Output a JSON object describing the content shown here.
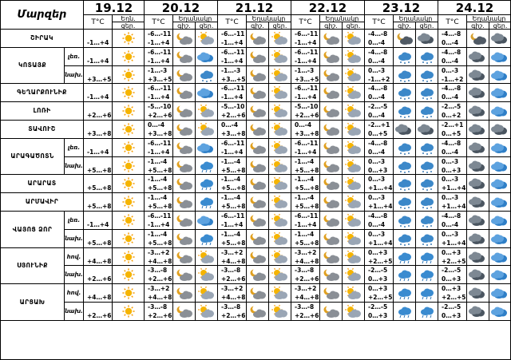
{
  "header": {
    "corner": "Մարզեր",
    "dates": [
      "19.12",
      "20.12",
      "21.12",
      "22.12",
      "23.12",
      "24.12"
    ],
    "tc": "T°C",
    "first_day_weather": "Եղն.",
    "weather": "Եղանակը",
    "night_short": "գիշ.",
    "day_short": "ցեր."
  },
  "row_labels": [
    "գիշ.",
    "ցեր."
  ],
  "rows": [
    {
      "region": "ՇԻՐԱԿ",
      "sub": "",
      "t": [
        [
          "",
          "-1…+4"
        ],
        [
          "-6…-11",
          "-1…+4"
        ],
        [
          "-6…-11",
          "-1…+4"
        ],
        [
          "-6…-11",
          "-1…+4"
        ],
        [
          "-4…-8",
          "0…-4"
        ],
        [
          "-4…-8",
          "0…-4"
        ]
      ],
      "icons": [
        "sun",
        "moon-cloud",
        "cloud-sun",
        "moon-cloud",
        "cloud-sun",
        "moon-cloud",
        "cloud-sun",
        "cloud-moon-dark",
        "cloud-dark",
        "cloud-moon-dark",
        "cloud-dark"
      ]
    },
    {
      "region": "ԿՈՏԱՅՔ",
      "sub": "լեռ.",
      "t": [
        [
          "",
          "-1…+4"
        ],
        [
          "-6…-11",
          "-1…+4"
        ],
        [
          "-6…-11",
          "-1…+4"
        ],
        [
          "-6…-11",
          "-1…+4"
        ],
        [
          "-4…-8",
          "0…-4"
        ],
        [
          "-4…-8",
          "0…-4"
        ]
      ],
      "icons": [
        "sun",
        "moon-cloud",
        "blue-cloud",
        "moon-cloud",
        "cloud-sun",
        "moon-cloud",
        "cloud-sun",
        "snow-cloud",
        "snow-cloud",
        "cloud-dark",
        "blue-cloud"
      ]
    },
    {
      "region": "ԿՈՏԱՅՔ",
      "sub": "նախ.",
      "t": [
        [
          "",
          "+3…+5"
        ],
        [
          "-1…-3",
          "+3…+5"
        ],
        [
          "-1…-3",
          "+3…+5"
        ],
        [
          "-1…-3",
          "+3…+5"
        ],
        [
          "0…-3",
          "-1…+2"
        ],
        [
          "0…-3",
          "-1…+2"
        ]
      ],
      "icons": [
        "sun",
        "moon-cloud",
        "snow-cloud",
        "moon-cloud",
        "cloud-sun",
        "moon-cloud",
        "cloud-sun",
        "snow-cloud",
        "snow-cloud",
        "cloud-dark",
        "blue-cloud"
      ]
    },
    {
      "region": "ԳԵՂԱՐՔՈՒՆԻՔ",
      "sub": "",
      "t": [
        [
          "",
          "-1…+4"
        ],
        [
          "-6…-11",
          "-1…+4"
        ],
        [
          "-6…-11",
          "-1…+4"
        ],
        [
          "-6…-11",
          "-1…+4"
        ],
        [
          "-4…-8",
          "0…-4"
        ],
        [
          "-4…-8",
          "0…-4"
        ]
      ],
      "icons": [
        "sun",
        "moon-cloud",
        "blue-cloud",
        "moon-cloud",
        "cloud-sun",
        "moon-cloud",
        "cloud-sun",
        "snow-cloud",
        "snow-cloud",
        "cloud-dark",
        "blue-cloud"
      ]
    },
    {
      "region": "ԼՈՌԻ",
      "sub": "",
      "t": [
        [
          "",
          "+2…+6"
        ],
        [
          "-5…-10",
          "+2…+6"
        ],
        [
          "-5…-10",
          "+2…+6"
        ],
        [
          "-5…-10",
          "+2…+6"
        ],
        [
          "-2…-5",
          "0…-4"
        ],
        [
          "-2…-5",
          "0…+2"
        ]
      ],
      "icons": [
        "sun",
        "moon-cloud",
        "cloud-sun",
        "moon-cloud",
        "cloud-sun",
        "moon-cloud",
        "cloud-sun",
        "snow-cloud",
        "snow-cloud",
        "cloud-dark",
        "blue-cloud"
      ]
    },
    {
      "region": "ՏԱՎՈՒՇ",
      "sub": "",
      "t": [
        [
          "",
          "+3…+8"
        ],
        [
          "0…-4",
          "+3…+8"
        ],
        [
          "0…-4",
          "+3…+8"
        ],
        [
          "0…-4",
          "+3…+8"
        ],
        [
          "-2…+1",
          "0…+5"
        ],
        [
          "-2…+1",
          "0…+5"
        ]
      ],
      "icons": [
        "sun",
        "moon-cloud",
        "cloud-sun",
        "moon-cloud",
        "cloud-sun",
        "moon-cloud",
        "cloud-sun",
        "cloud-dark",
        "cloud-dark",
        "cloud-dark",
        "cloud-dark"
      ]
    },
    {
      "region": "ԱՐԱԳԱԾՈՏՆ",
      "sub": "լեռ.",
      "t": [
        [
          "",
          "-1…+4"
        ],
        [
          "-6…-11",
          "-1…+4"
        ],
        [
          "-6…-11",
          "-1…+4"
        ],
        [
          "-6…-11",
          "-1…+4"
        ],
        [
          "-4…-8",
          "0…-4"
        ],
        [
          "-4…-8",
          "0…-4"
        ]
      ],
      "icons": [
        "sun",
        "moon-cloud",
        "blue-cloud",
        "moon-cloud",
        "cloud-sun",
        "moon-cloud",
        "cloud-sun",
        "snow-cloud",
        "snow-cloud",
        "cloud-dark",
        "blue-cloud"
      ]
    },
    {
      "region": "ԱՐԱԳԱԾՈՏՆ",
      "sub": "նախ.",
      "t": [
        [
          "",
          "+5…+8"
        ],
        [
          "-1…-4",
          "+5…+8"
        ],
        [
          "-1…-4",
          "+5…+8"
        ],
        [
          "-1…-4",
          "+5…+8"
        ],
        [
          "0…-3",
          "0…+3"
        ],
        [
          "0…-3",
          "0…+3"
        ]
      ],
      "icons": [
        "sun",
        "moon-cloud",
        "rain-cloud",
        "moon-cloud",
        "cloud-sun",
        "moon-cloud",
        "cloud-sun",
        "snow-cloud",
        "snow-cloud",
        "cloud-dark",
        "blue-cloud"
      ]
    },
    {
      "region": "ԱՐԱՐԱՏ",
      "sub": "",
      "t": [
        [
          "",
          "+5…+8"
        ],
        [
          "-1…-4",
          "+5…+8"
        ],
        [
          "-1…-4",
          "+5…+8"
        ],
        [
          "-1…-4",
          "+5…+8"
        ],
        [
          "0…-3",
          "+1…+4"
        ],
        [
          "0…-3",
          "+1…+4"
        ]
      ],
      "icons": [
        "sun",
        "moon-cloud",
        "rain-cloud",
        "moon-cloud",
        "cloud-sun",
        "moon-cloud",
        "cloud-sun",
        "snow-cloud",
        "snow-cloud",
        "cloud-dark",
        "blue-cloud"
      ]
    },
    {
      "region": "ԱՐՄԱՎԻՐ",
      "sub": "",
      "t": [
        [
          "",
          "+5…+8"
        ],
        [
          "-1…-4",
          "+5…+8"
        ],
        [
          "-1…-4",
          "+5…+8"
        ],
        [
          "-1…-4",
          "+5…+8"
        ],
        [
          "0…-3",
          "+1…+4"
        ],
        [
          "0…-3",
          "+1…+4"
        ]
      ],
      "icons": [
        "sun",
        "moon-cloud",
        "rain-cloud",
        "moon-cloud",
        "cloud-sun",
        "moon-cloud",
        "cloud-sun",
        "snow-cloud",
        "snow-cloud",
        "cloud-dark",
        "blue-cloud"
      ]
    },
    {
      "region": "ՎԱՅՈՑ ՁՈՐ",
      "sub": "լեռ.",
      "t": [
        [
          "",
          "-1…+4"
        ],
        [
          "-6…-11",
          "-1…+4"
        ],
        [
          "-6…-11",
          "-1…+4"
        ],
        [
          "-6…-11",
          "-1…+4"
        ],
        [
          "-4…-8",
          "0…-4"
        ],
        [
          "-4…-8",
          "0…-4"
        ]
      ],
      "icons": [
        "sun",
        "moon-cloud",
        "blue-cloud",
        "moon-cloud",
        "cloud-sun",
        "moon-cloud",
        "cloud-sun",
        "snow-cloud",
        "snow-cloud",
        "cloud-dark",
        "blue-cloud"
      ]
    },
    {
      "region": "ՎԱՅՈՑ ՁՈՐ",
      "sub": "նախ.",
      "t": [
        [
          "",
          "+5…+8"
        ],
        [
          "-1…-4",
          "+5…+8"
        ],
        [
          "-1…-4",
          "+5…+8"
        ],
        [
          "-1…-4",
          "+5…+8"
        ],
        [
          "0…-3",
          "+1…+4"
        ],
        [
          "0…-3",
          "+1…+4"
        ]
      ],
      "icons": [
        "sun",
        "moon-cloud",
        "rain-cloud",
        "moon-cloud",
        "cloud-sun",
        "moon-cloud",
        "cloud-sun",
        "snow-cloud",
        "snow-cloud",
        "cloud-dark",
        "blue-cloud"
      ]
    },
    {
      "region": "ՍՅՈՒՆԻՔ",
      "sub": "հով.",
      "t": [
        [
          "",
          "+4…+8"
        ],
        [
          "-3…+2",
          "+4…+8"
        ],
        [
          "-3…+2",
          "+4…+8"
        ],
        [
          "-3…+2",
          "+4…+8"
        ],
        [
          "0…+3",
          "+2…+5"
        ],
        [
          "0…+3",
          "+2…+5"
        ]
      ],
      "icons": [
        "sun",
        "moon-cloud",
        "cloud-sun",
        "moon-cloud",
        "cloud-sun",
        "moon-cloud",
        "cloud-sun",
        "rain-cloud",
        "rain-cloud",
        "cloud-dark",
        "blue-cloud"
      ]
    },
    {
      "region": "ՍՅՈՒՆԻՔ",
      "sub": "նախ.",
      "t": [
        [
          "",
          "+2…+6"
        ],
        [
          "-3…-8",
          "+2…+6"
        ],
        [
          "-3…-8",
          "+2…+6"
        ],
        [
          "-3…-8",
          "+2…+6"
        ],
        [
          "-2…-5",
          "0…+3"
        ],
        [
          "-2…-5",
          "0…+3"
        ]
      ],
      "icons": [
        "sun",
        "moon-cloud",
        "cloud-sun",
        "moon-cloud",
        "cloud-sun",
        "moon-cloud",
        "cloud-sun",
        "rain-cloud",
        "rain-cloud",
        "cloud-dark",
        "blue-cloud"
      ]
    },
    {
      "region": "ԱՐՑԱԽ",
      "sub": "հով.",
      "t": [
        [
          "",
          "+4…+8"
        ],
        [
          "-3…+2",
          "+4…+8"
        ],
        [
          "-3…+2",
          "+4…+8"
        ],
        [
          "-3…+2",
          "+4…+8"
        ],
        [
          "0…+3",
          "+2…+5"
        ],
        [
          "0…+3",
          "+2…+5"
        ]
      ],
      "icons": [
        "sun",
        "moon-cloud",
        "cloud-sun",
        "moon-cloud",
        "cloud-sun",
        "moon-cloud",
        "cloud-sun",
        "rain-cloud",
        "rain-cloud",
        "cloud-dark",
        "blue-cloud"
      ]
    },
    {
      "region": "ԱՐՑԱԽ",
      "sub": "նախ.",
      "t": [
        [
          "",
          "+2…+6"
        ],
        [
          "-3…-8",
          "+2…+6"
        ],
        [
          "-3…-8",
          "+2…+6"
        ],
        [
          "-3…-8",
          "+2…+6"
        ],
        [
          "-2…-5",
          "0…+3"
        ],
        [
          "-2…-5",
          "0…+3"
        ]
      ],
      "icons": [
        "sun",
        "moon-cloud",
        "cloud-sun",
        "moon-cloud",
        "cloud-sun",
        "moon-cloud",
        "cloud-sun",
        "rain-cloud",
        "rain-cloud",
        "cloud-dark",
        "blue-cloud"
      ]
    }
  ]
}
